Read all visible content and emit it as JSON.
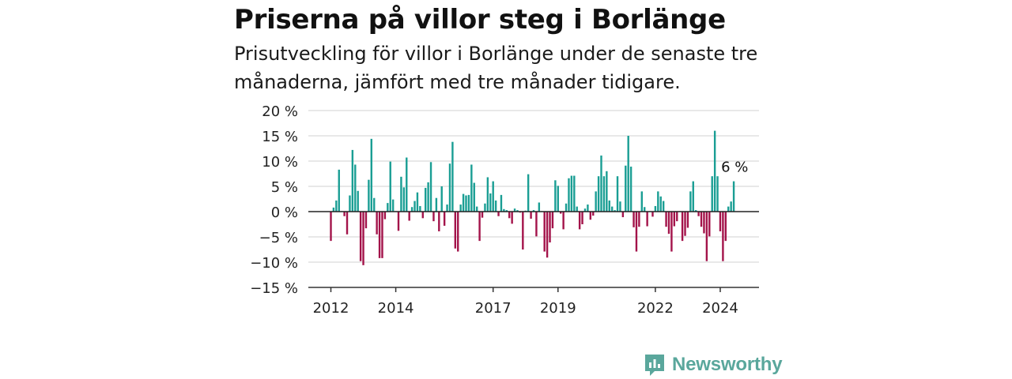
{
  "title": "Priserna på villor steg i Borlänge",
  "subtitle": "Prisutveckling för villor i Borlänge under de senaste tre månaderna, jämfört med tre månader tidigare.",
  "brand": {
    "name": "Newsworthy",
    "icon": "newsworthy-logo-icon"
  },
  "colors": {
    "positive": "#1a9e94",
    "negative": "#a3134a",
    "grid": "#d9d9d9",
    "axis": "#333333",
    "brand": "#5aa79c"
  },
  "chart_data": {
    "type": "bar",
    "title": "Priserna på villor steg i Borlänge",
    "xlabel": "",
    "ylabel": "",
    "unit": "%",
    "ylim": [
      -15,
      20
    ],
    "yticks": [
      20,
      15,
      10,
      5,
      0,
      -5,
      -10,
      -15
    ],
    "ytick_labels": [
      "20 %",
      "15 %",
      "10 %",
      "5 %",
      "0 %",
      "−5 %",
      "−10 %",
      "−15 %"
    ],
    "xtick_labels": [
      "2012",
      "2014",
      "2017",
      "2019",
      "2022",
      "2024"
    ],
    "grid": true,
    "start_period": "2012-01",
    "frequency": "monthly",
    "last_value_label": "6 %",
    "values": [
      -5.8,
      0.8,
      2.2,
      8.3,
      0.1,
      -0.9,
      -4.5,
      3.2,
      12.2,
      9.3,
      4.1,
      -9.8,
      -10.6,
      -3.3,
      6.3,
      14.4,
      2.7,
      -4.5,
      -9.2,
      -9.2,
      -1.5,
      1.7,
      9.9,
      2.4,
      0.1,
      -3.8,
      6.9,
      4.8,
      10.7,
      -1.8,
      0.9,
      2.1,
      3.8,
      1.1,
      -1.3,
      4.7,
      5.8,
      9.8,
      -1.9,
      2.7,
      -3.9,
      5.0,
      -2.8,
      1.4,
      9.5,
      13.8,
      -7.3,
      -7.9,
      1.4,
      3.5,
      3.2,
      3.3,
      9.3,
      5.7,
      1.0,
      -5.8,
      -1.2,
      1.6,
      6.8,
      3.6,
      6.0,
      2.2,
      -0.9,
      3.3,
      0.5,
      0.3,
      -1.3,
      -2.4,
      0.6,
      0.3,
      -0.2,
      -7.5,
      0.2,
      7.4,
      -1.4,
      0.3,
      -4.9,
      1.8,
      0.1,
      -7.9,
      -9.1,
      -6.1,
      -3.3,
      6.2,
      5.1,
      -0.4,
      -3.5,
      1.6,
      6.6,
      7.1,
      7.1,
      1.0,
      -3.5,
      -2.5,
      0.6,
      1.4,
      -1.6,
      -0.8,
      4.0,
      7.0,
      11.1,
      7.0,
      8.0,
      2.2,
      1.0,
      0.3,
      7.0,
      2.0,
      -1.1,
      9.1,
      15.0,
      8.9,
      -3.1,
      -7.9,
      -3.0,
      4.0,
      0.9,
      -2.9,
      0.1,
      -1.0,
      1.1,
      4.0,
      3.0,
      2.1,
      -3.0,
      -4.4,
      -7.9,
      -2.9,
      -1.9,
      0.1,
      -5.8,
      -4.8,
      -3.2,
      4.0,
      6.0,
      0.3,
      -0.9,
      -3.0,
      -4.3,
      -9.8,
      -4.9,
      7.0,
      16.0,
      7.0,
      -3.9,
      -9.8,
      -5.8,
      1.0,
      2.0,
      6.0
    ]
  }
}
